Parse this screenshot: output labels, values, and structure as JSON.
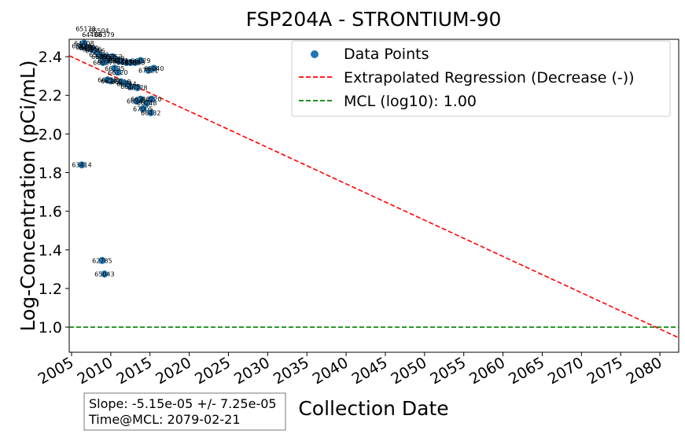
{
  "chart_data": {
    "type": "scatter",
    "title": "FSP204A - STRONTIUM-90",
    "xlabel": "Collection Date",
    "ylabel": "Log-Concentration (pCi/mL)",
    "xlim": [
      2004.7,
      2082.4
    ],
    "ylim": [
      0.87,
      2.49
    ],
    "x_ticks": [
      2005,
      2010,
      2015,
      2020,
      2025,
      2030,
      2035,
      2040,
      2045,
      2050,
      2055,
      2060,
      2065,
      2070,
      2075,
      2080
    ],
    "y_ticks": [
      1.0,
      1.2,
      1.4,
      1.6,
      1.8,
      2.0,
      2.2,
      2.4
    ],
    "y_tick_labels": [
      "1.0",
      "1.2",
      "1.4",
      "1.6",
      "1.8",
      "2.0",
      "2.2",
      "2.4"
    ],
    "grid": false,
    "legend_placement": "top-right",
    "series": [
      {
        "name": "Data Points",
        "kind": "scatter",
        "color": "#1f77b4",
        "points": [
          {
            "x": 2006.3,
            "y": 2.455,
            "label": "65430"
          },
          {
            "x": 2006.6,
            "y": 2.47,
            "label": "64408"
          },
          {
            "x": 2006.8,
            "y": 2.45,
            "label": "65490"
          },
          {
            "x": 2007.2,
            "y": 2.445,
            "label": "64390"
          },
          {
            "x": 2007.6,
            "y": 2.44,
            "label": "65416"
          },
          {
            "x": 2008.0,
            "y": 2.43,
            "label": "64366"
          },
          {
            "x": 2008.5,
            "y": 2.41,
            "label": "65382"
          },
          {
            "x": 2008.8,
            "y": 2.4,
            "label": "65301"
          },
          {
            "x": 2009.3,
            "y": 2.4,
            "label": "64352"
          },
          {
            "x": 2009.6,
            "y": 2.38,
            "label": "65314"
          },
          {
            "x": 2009.0,
            "y": 2.37,
            "label": "66027"
          },
          {
            "x": 2010.2,
            "y": 2.4,
            "label": "65352"
          },
          {
            "x": 2010.5,
            "y": 2.39,
            "label": "64348"
          },
          {
            "x": 2011.0,
            "y": 2.38,
            "label": "65371"
          },
          {
            "x": 2011.5,
            "y": 2.375,
            "label": "65369"
          },
          {
            "x": 2012.0,
            "y": 2.37,
            "label": "66038"
          },
          {
            "x": 2012.5,
            "y": 2.37,
            "label": "65361"
          },
          {
            "x": 2013.1,
            "y": 2.37,
            "label": "65343"
          },
          {
            "x": 2013.8,
            "y": 2.38,
            "label": "66029"
          },
          {
            "x": 2010.5,
            "y": 2.34,
            "label": "66135"
          },
          {
            "x": 2010.9,
            "y": 2.32,
            "label": "66120"
          },
          {
            "x": 2015.5,
            "y": 2.34,
            "label": "66040"
          },
          {
            "x": 2014.8,
            "y": 2.33,
            "label": "67321"
          },
          {
            "x": 2009.6,
            "y": 2.28,
            "label": "66218"
          },
          {
            "x": 2010.0,
            "y": 2.275,
            "label": "66243"
          },
          {
            "x": 2011.3,
            "y": 2.27,
            "label": "66218"
          },
          {
            "x": 2012.0,
            "y": 2.26,
            "label": "66244"
          },
          {
            "x": 2012.5,
            "y": 2.245,
            "label": "66175"
          },
          {
            "x": 2013.4,
            "y": 2.24,
            "label": "66178"
          },
          {
            "x": 2013.8,
            "y": 2.18,
            "label": "66212"
          },
          {
            "x": 2015.2,
            "y": 2.18,
            "label": "66220"
          },
          {
            "x": 2013.3,
            "y": 2.17,
            "label": "66241"
          },
          {
            "x": 2014.6,
            "y": 2.16,
            "label": "66248"
          },
          {
            "x": 2014.1,
            "y": 2.13,
            "label": "67005"
          },
          {
            "x": 2015.1,
            "y": 2.11,
            "label": "66432"
          },
          {
            "x": 2006.3,
            "y": 1.84,
            "label": "63414"
          },
          {
            "x": 2008.9,
            "y": 1.345,
            "label": "62785"
          },
          {
            "x": 2009.2,
            "y": 1.275,
            "label": "65043"
          }
        ],
        "extra_labels": [
          {
            "x": 2006.8,
            "y": 2.545,
            "label": "65178"
          },
          {
            "x": 2008.5,
            "y": 2.535,
            "label": "66504"
          },
          {
            "x": 2007.6,
            "y": 2.515,
            "label": "64408"
          },
          {
            "x": 2009.2,
            "y": 2.515,
            "label": "66379"
          }
        ]
      },
      {
        "name": "Extrapolated Regression (Decrease (-))",
        "kind": "line",
        "style": "dashed",
        "color": "#ff0000",
        "x": [
          2004.7,
          2082.4
        ],
        "y": [
          2.405,
          0.945
        ]
      },
      {
        "name": "MCL (log10): 1.00",
        "kind": "hline",
        "style": "dashed",
        "color": "#008000",
        "y": 1.0
      }
    ],
    "annotation": {
      "lines": [
        "Slope: -5.15e-05 +/- 7.25e-05",
        "Time@MCL: 2079-02-21"
      ],
      "placement": "bottom-left"
    }
  }
}
